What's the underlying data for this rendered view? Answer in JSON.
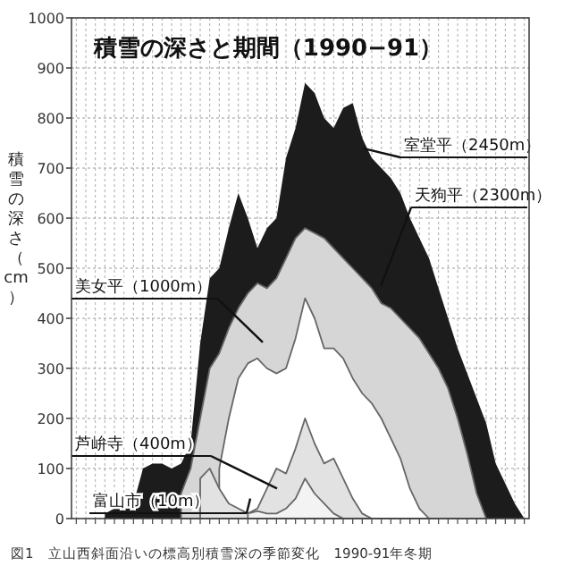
{
  "chart_data": {
    "type": "area",
    "title": "積雪の深さと期間（1990−91）",
    "ylabel": "積雪の深さ（cm）",
    "categories": [
      null,
      null,
      null,
      null,
      null,
      null,
      null,
      null,
      null,
      null,
      null,
      null,
      null,
      null,
      null,
      null,
      null,
      null,
      null,
      null,
      null,
      null,
      null,
      null,
      null,
      null,
      null,
      null,
      null,
      null,
      null,
      null,
      null,
      null,
      null,
      null,
      null,
      null,
      null,
      null,
      null,
      null,
      null,
      null,
      null,
      null,
      null,
      null
    ],
    "series": [
      {
        "name": "室堂平（2450m）",
        "color": "#1c1c1c",
        "values": [
          null,
          null,
          null,
          10,
          20,
          20,
          30,
          100,
          110,
          110,
          100,
          110,
          150,
          350,
          480,
          500,
          580,
          650,
          600,
          540,
          580,
          600,
          720,
          780,
          870,
          850,
          800,
          780,
          820,
          830,
          760,
          720,
          700,
          680,
          650,
          600,
          560,
          520,
          460,
          400,
          340,
          290,
          240,
          190,
          110,
          70,
          30,
          0
        ]
      },
      {
        "name": "天狗平（2300m）",
        "color": "#d6d6d6",
        "values": [
          null,
          null,
          null,
          null,
          null,
          null,
          null,
          null,
          null,
          null,
          null,
          50,
          100,
          200,
          300,
          330,
          380,
          420,
          450,
          470,
          460,
          480,
          520,
          560,
          580,
          570,
          560,
          540,
          520,
          500,
          480,
          460,
          430,
          420,
          400,
          380,
          360,
          330,
          300,
          260,
          200,
          130,
          50,
          0,
          null,
          null,
          null,
          null
        ]
      },
      {
        "name": "美女平（1000m）",
        "color": "#ffffff",
        "values": [
          null,
          null,
          null,
          null,
          null,
          null,
          null,
          null,
          null,
          null,
          null,
          null,
          null,
          null,
          null,
          100,
          200,
          280,
          310,
          320,
          300,
          290,
          300,
          360,
          440,
          400,
          340,
          340,
          320,
          280,
          250,
          230,
          200,
          160,
          120,
          60,
          20,
          0,
          null,
          null,
          null,
          null,
          null,
          null,
          null,
          null,
          null,
          null
        ]
      },
      {
        "name": "芦峅寺（400m）",
        "color": "#e2e2e2",
        "values": [
          null,
          null,
          null,
          null,
          null,
          null,
          null,
          null,
          null,
          null,
          null,
          null,
          null,
          80,
          100,
          60,
          30,
          20,
          10,
          20,
          60,
          100,
          90,
          140,
          200,
          150,
          110,
          120,
          80,
          40,
          10,
          0,
          null,
          null,
          null,
          null,
          null,
          null,
          null,
          null,
          null,
          null,
          null,
          null,
          null,
          null,
          null,
          null
        ]
      },
      {
        "name": "富山市（10m）",
        "color": "#f3f3f3",
        "values": [
          null,
          null,
          null,
          null,
          null,
          null,
          null,
          null,
          null,
          null,
          null,
          null,
          null,
          null,
          null,
          null,
          null,
          null,
          10,
          15,
          10,
          10,
          20,
          40,
          80,
          50,
          30,
          10,
          0,
          null,
          null,
          null,
          null,
          null,
          null,
          null,
          null,
          null,
          null,
          null,
          null,
          null,
          null,
          null,
          null,
          null,
          null,
          null
        ]
      }
    ],
    "ylim": [
      0,
      1000
    ],
    "yticks": [
      0,
      100,
      200,
      300,
      400,
      500,
      600,
      700,
      800,
      900,
      1000
    ],
    "grid": true,
    "annotations": [
      "図1　立山西斜面沿いの標高別積雪深の季節変化　1990-91年冬期"
    ]
  }
}
